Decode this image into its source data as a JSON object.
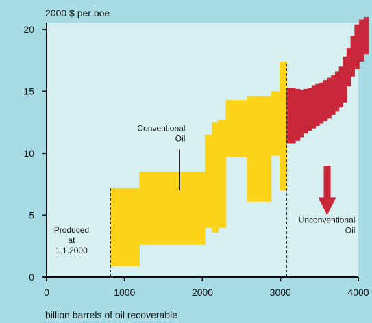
{
  "chart_data": {
    "type": "area",
    "ylabel": "2000 $ per boe",
    "xlabel": "billion barrels of oil recoverable",
    "xlim": [
      0,
      4000
    ],
    "ylim": [
      0,
      21
    ],
    "x_ticks": [
      0,
      1000,
      2000,
      3000,
      4000
    ],
    "y_ticks": [
      0,
      5,
      10,
      15,
      20
    ],
    "grid": false,
    "colors": {
      "conventional": "#fdd319",
      "unconventional": "#c8283a",
      "background": "#a8dce4",
      "plot": "#d6f0f2"
    },
    "series": [
      {
        "name": "Conventional Oil",
        "color": "#fdd319",
        "ranges": [
          {
            "x0": 820,
            "x1": 1190,
            "low": 0.9,
            "high": 7.2
          },
          {
            "x0": 1190,
            "x1": 2030,
            "low": 2.6,
            "high": 8.5
          },
          {
            "x0": 2030,
            "x1": 2120,
            "low": 4.0,
            "high": 11.5
          },
          {
            "x0": 2120,
            "x1": 2200,
            "low": 3.6,
            "high": 12.5
          },
          {
            "x0": 2200,
            "x1": 2300,
            "low": 4.0,
            "high": 12.7
          },
          {
            "x0": 2300,
            "x1": 2570,
            "low": 9.7,
            "high": 14.3
          },
          {
            "x0": 2570,
            "x1": 2880,
            "low": 6.1,
            "high": 14.6
          },
          {
            "x0": 2880,
            "x1": 2990,
            "low": 9.8,
            "high": 15.0
          },
          {
            "x0": 2990,
            "x1": 3080,
            "low": 7.0,
            "high": 17.4
          }
        ]
      },
      {
        "name": "Unconventional Oil",
        "color": "#c8283a",
        "ranges": [
          {
            "x0": 3080,
            "x1": 3190,
            "low": 10.8,
            "high": 15.3
          },
          {
            "x0": 3190,
            "x1": 3250,
            "low": 11.0,
            "high": 15.2
          },
          {
            "x0": 3250,
            "x1": 3300,
            "low": 11.3,
            "high": 15.1
          },
          {
            "x0": 3300,
            "x1": 3350,
            "low": 11.6,
            "high": 15.2
          },
          {
            "x0": 3350,
            "x1": 3400,
            "low": 11.8,
            "high": 15.3
          },
          {
            "x0": 3400,
            "x1": 3450,
            "low": 12.0,
            "high": 15.5
          },
          {
            "x0": 3450,
            "x1": 3500,
            "low": 12.2,
            "high": 15.6
          },
          {
            "x0": 3500,
            "x1": 3550,
            "low": 12.4,
            "high": 15.7
          },
          {
            "x0": 3550,
            "x1": 3600,
            "low": 12.6,
            "high": 15.9
          },
          {
            "x0": 3600,
            "x1": 3650,
            "low": 12.8,
            "high": 16.1
          },
          {
            "x0": 3650,
            "x1": 3700,
            "low": 13.1,
            "high": 16.3
          },
          {
            "x0": 3700,
            "x1": 3750,
            "low": 13.4,
            "high": 16.6
          },
          {
            "x0": 3750,
            "x1": 3800,
            "low": 13.7,
            "high": 17.0
          },
          {
            "x0": 3800,
            "x1": 3850,
            "low": 14.1,
            "high": 17.8
          },
          {
            "x0": 3850,
            "x1": 3900,
            "low": 15.4,
            "high": 18.5
          },
          {
            "x0": 3900,
            "x1": 3950,
            "low": 16.2,
            "high": 19.5
          },
          {
            "x0": 3950,
            "x1": 4010,
            "low": 16.8,
            "high": 20.4
          },
          {
            "x0": 4010,
            "x1": 4070,
            "low": 17.4,
            "high": 20.8
          },
          {
            "x0": 4070,
            "x1": 4130,
            "low": 18.0,
            "high": 21.0
          }
        ]
      }
    ],
    "reference_lines": [
      {
        "x": 820,
        "ymax": 7.2
      },
      {
        "x": 3080,
        "ymax": 17.4
      }
    ],
    "annotations": [
      {
        "lines": [
          "Conventional",
          "Oil"
        ],
        "x": 1570,
        "y": 11.8
      },
      {
        "lines": [
          "Produced",
          "at",
          "1.1.2000"
        ],
        "x": 320,
        "y": 3.6
      },
      {
        "lines": [
          "Unconventional",
          "Oil"
        ],
        "x": 3750,
        "y": 4.4
      }
    ],
    "arrow": {
      "x": 3600,
      "from": 9.0,
      "to": 5.0
    }
  }
}
